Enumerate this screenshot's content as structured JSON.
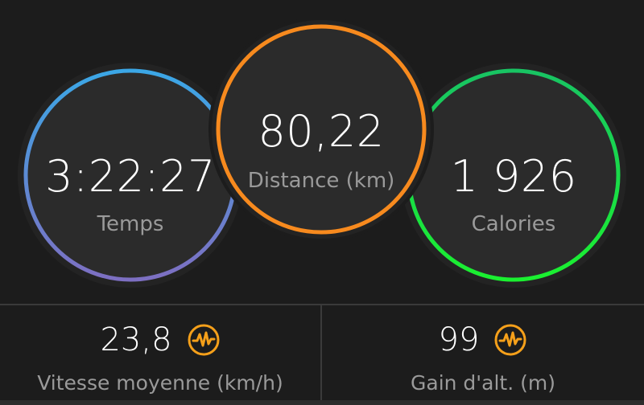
{
  "circles": {
    "time": {
      "value": "3:22:27",
      "label": "Temps",
      "colors": [
        "#3ba7e6",
        "#7d6fc2"
      ]
    },
    "distance": {
      "value": "80,22",
      "label": "Distance (km)",
      "color": "#f78a1e"
    },
    "calories": {
      "value": "1 926",
      "label": "Calories",
      "colors": [
        "#18c463",
        "#18f034"
      ]
    }
  },
  "stats": {
    "speed": {
      "value": "23,8",
      "label": "Vitesse moyenne (km/h)",
      "icon": "activity-pulse-icon"
    },
    "elevation": {
      "value": "99",
      "label": "Gain d'alt. (m)",
      "icon": "activity-pulse-icon"
    }
  },
  "accent_icon_color": "#f5a01a",
  "background": "#1c1c1c"
}
